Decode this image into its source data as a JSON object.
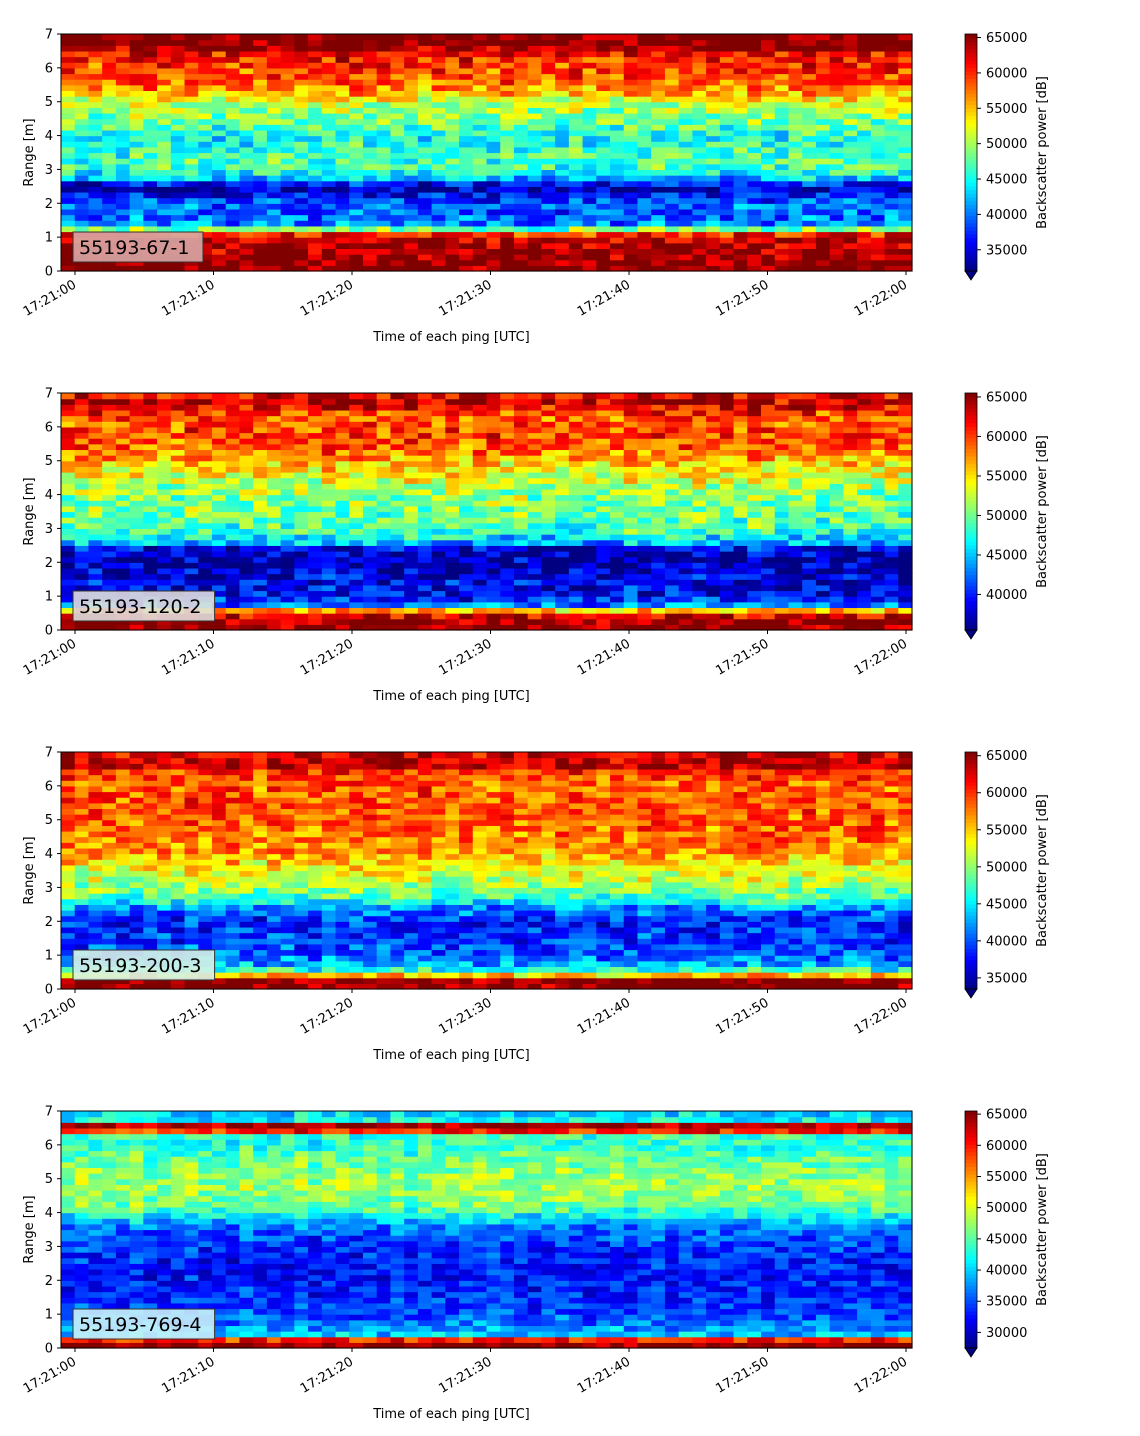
{
  "chart_data": [
    {
      "type": "heatmap",
      "label": "55193-67-1",
      "label_bg": "#d7a7a5",
      "xlabel": "Time of each ping [UTC]",
      "ylabel": "Range [m]",
      "xticks": [
        "17:21:00",
        "17:21:10",
        "17:21:20",
        "17:21:30",
        "17:21:40",
        "17:21:50",
        "17:22:00"
      ],
      "yticks": [
        0,
        1,
        2,
        3,
        4,
        5,
        6,
        7
      ],
      "ylim": [
        0,
        7
      ],
      "colorbar_label": "Backscatter power [dB]",
      "colorbar_ticks": [
        35000,
        40000,
        45000,
        50000,
        55000,
        60000,
        65000
      ],
      "colorbar_range": [
        32000,
        65500
      ],
      "colormap": "jet",
      "profile": [
        [
          0,
          65500
        ],
        [
          0.22,
          65500
        ],
        [
          0.95,
          63000
        ],
        [
          1.1,
          60000
        ],
        [
          1.2,
          52000
        ],
        [
          1.35,
          41000
        ],
        [
          1.7,
          39000
        ],
        [
          1.95,
          40000
        ],
        [
          2.2,
          37000
        ],
        [
          2.5,
          33000
        ],
        [
          2.7,
          41000
        ],
        [
          3.0,
          47000
        ],
        [
          3.5,
          46500
        ],
        [
          4.0,
          45000
        ],
        [
          4.5,
          49000
        ],
        [
          5.0,
          51000
        ],
        [
          5.2,
          55000
        ],
        [
          5.6,
          58000
        ],
        [
          6.0,
          59500
        ],
        [
          6.4,
          61000
        ],
        [
          6.55,
          64000
        ],
        [
          6.65,
          65500
        ],
        [
          7.0,
          65500
        ]
      ],
      "noise": 4000
    },
    {
      "type": "heatmap",
      "label": "55193-120-2",
      "label_bg": "#dfdcdc",
      "xlabel": "Time of each ping [UTC]",
      "ylabel": "Range [m]",
      "xticks": [
        "17:21:00",
        "17:21:10",
        "17:21:20",
        "17:21:30",
        "17:21:40",
        "17:21:50",
        "17:22:00"
      ],
      "yticks": [
        0,
        1,
        2,
        3,
        4,
        5,
        6,
        7
      ],
      "ylim": [
        0,
        7
      ],
      "colorbar_label": "Backscatter power [dB]",
      "colorbar_ticks": [
        40000,
        45000,
        50000,
        55000,
        60000,
        65000
      ],
      "colorbar_range": [
        35500,
        65500
      ],
      "colormap": "jet",
      "profile": [
        [
          0,
          65500
        ],
        [
          0.3,
          65500
        ],
        [
          0.55,
          60000
        ],
        [
          0.7,
          44000
        ],
        [
          1.0,
          39500
        ],
        [
          1.5,
          38500
        ],
        [
          2.0,
          37000
        ],
        [
          2.4,
          38500
        ],
        [
          2.6,
          45000
        ],
        [
          3.0,
          49000
        ],
        [
          3.5,
          50000
        ],
        [
          4.0,
          51000
        ],
        [
          4.5,
          53500
        ],
        [
          5.0,
          56000
        ],
        [
          5.3,
          59000
        ],
        [
          5.8,
          60000
        ],
        [
          6.2,
          59000
        ],
        [
          6.5,
          61000
        ],
        [
          6.7,
          64000
        ],
        [
          7.0,
          62000
        ]
      ],
      "noise": 3800
    },
    {
      "type": "heatmap",
      "label": "55193-200-3",
      "label_bg": "#d6f1e6",
      "xlabel": "Time of each ping [UTC]",
      "ylabel": "Range [m]",
      "xticks": [
        "17:21:00",
        "17:21:10",
        "17:21:20",
        "17:21:30",
        "17:21:40",
        "17:21:50",
        "17:22:00"
      ],
      "yticks": [
        0,
        1,
        2,
        3,
        4,
        5,
        6,
        7
      ],
      "ylim": [
        0,
        7
      ],
      "colorbar_label": "Backscatter power [dB]",
      "colorbar_ticks": [
        35000,
        40000,
        45000,
        50000,
        55000,
        60000,
        65000
      ],
      "colorbar_range": [
        33500,
        65500
      ],
      "colormap": "jet",
      "profile": [
        [
          0,
          65500
        ],
        [
          0.35,
          65500
        ],
        [
          0.45,
          50000
        ],
        [
          0.7,
          43000
        ],
        [
          1.0,
          41000
        ],
        [
          1.5,
          39000
        ],
        [
          2.0,
          38500
        ],
        [
          2.4,
          42000
        ],
        [
          2.7,
          48000
        ],
        [
          3.0,
          50000
        ],
        [
          3.5,
          53000
        ],
        [
          4.0,
          56500
        ],
        [
          4.5,
          58000
        ],
        [
          5.0,
          58500
        ],
        [
          5.5,
          59000
        ],
        [
          6.0,
          58500
        ],
        [
          6.4,
          60000
        ],
        [
          6.6,
          64000
        ],
        [
          6.9,
          63000
        ],
        [
          7.0,
          62000
        ]
      ],
      "noise": 3600
    },
    {
      "type": "heatmap",
      "label": "55193-769-4",
      "label_bg": "#c9eef9",
      "xlabel": "Time of each ping [UTC]",
      "ylabel": "Range [m]",
      "xticks": [
        "17:21:00",
        "17:21:10",
        "17:21:20",
        "17:21:30",
        "17:21:40",
        "17:21:50",
        "17:22:00"
      ],
      "yticks": [
        0,
        1,
        2,
        3,
        4,
        5,
        6,
        7
      ],
      "ylim": [
        0,
        7
      ],
      "colorbar_label": "Backscatter power [dB]",
      "colorbar_ticks": [
        30000,
        35000,
        40000,
        45000,
        50000,
        55000,
        60000,
        65000
      ],
      "colorbar_range": [
        27500,
        65500
      ],
      "colormap": "jet",
      "profile": [
        [
          0,
          65500
        ],
        [
          0.18,
          65500
        ],
        [
          0.28,
          57000
        ],
        [
          0.4,
          40000
        ],
        [
          0.8,
          36000
        ],
        [
          1.5,
          33500
        ],
        [
          2.0,
          33000
        ],
        [
          2.5,
          33000
        ],
        [
          3.0,
          34000
        ],
        [
          3.5,
          36000
        ],
        [
          3.8,
          40000
        ],
        [
          4.2,
          46000
        ],
        [
          4.8,
          48000
        ],
        [
          5.5,
          46000
        ],
        [
          6.0,
          43000
        ],
        [
          6.3,
          44000
        ],
        [
          6.45,
          64000
        ],
        [
          6.6,
          64000
        ],
        [
          6.7,
          42000
        ],
        [
          7.0,
          40000
        ]
      ],
      "noise": 3500
    }
  ]
}
